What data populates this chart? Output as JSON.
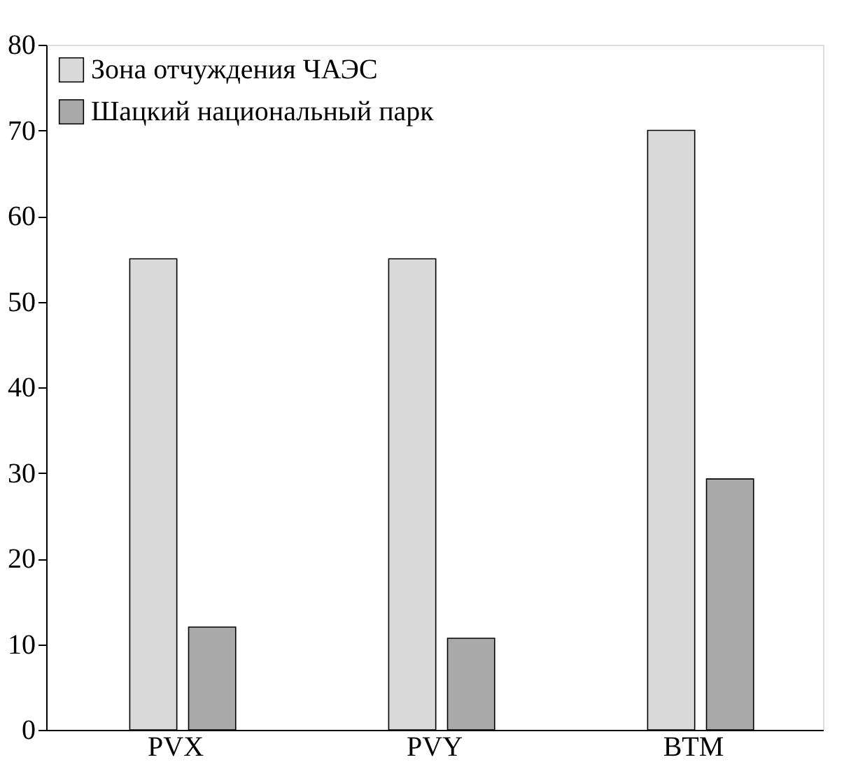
{
  "chart_data": {
    "type": "bar",
    "categories": [
      "PVX",
      "PVY",
      "BTM"
    ],
    "series": [
      {
        "name": "Зона отчуждения ЧАЭС",
        "color": "#d9d9d9",
        "values": [
          55,
          55,
          70
        ]
      },
      {
        "name": "Шацкий национальный парк",
        "color": "#a9a9a9",
        "values": [
          12,
          10.7,
          29.3
        ]
      }
    ],
    "ylim": [
      0,
      80
    ],
    "yticks": [
      0,
      10,
      20,
      30,
      40,
      50,
      60,
      70,
      80
    ],
    "grid": false,
    "legend": "top left"
  }
}
